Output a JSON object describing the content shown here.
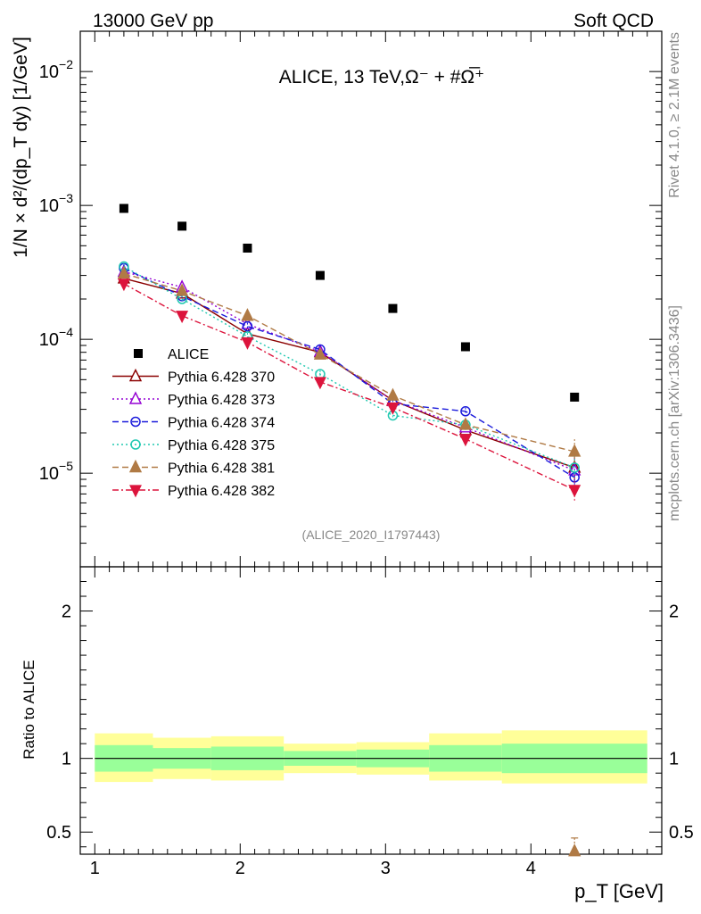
{
  "header": {
    "left": "13000 GeV pp",
    "right": "Soft QCD"
  },
  "side_labels": {
    "rivet": "Rivet 4.1.0, ≥ 2.1M events",
    "mcplots": "mcplots.cern.ch [arXiv:1306.3436]"
  },
  "chart_data": {
    "type": "scatter",
    "title": "ALICE, 13 TeV,Ω⁻ + #Ω̅⁺",
    "analysis_id": "(ALICE_2020_I1797443)",
    "xlabel": "p_T [GeV]",
    "ylabel": "1/N × d²/(dp_T dy) [1/GeV]",
    "ratio_ylabel": "Ratio to ALICE",
    "xlim": [
      0.9,
      4.9
    ],
    "ylim": [
      2e-06,
      0.02
    ],
    "yscale": "log",
    "ratio_ylim": [
      0.35,
      2.3
    ],
    "x_ticks": [
      1,
      2,
      3,
      4
    ],
    "y_ticks": [
      {
        "value": 1e-05,
        "base": "10",
        "exp": "−5"
      },
      {
        "value": 0.0001,
        "base": "10",
        "exp": "−4"
      },
      {
        "value": 0.001,
        "base": "10",
        "exp": "−3"
      },
      {
        "value": 0.01,
        "base": "10",
        "exp": "−2"
      }
    ],
    "ratio_ticks": [
      {
        "value": 0.5,
        "label": "0.5"
      },
      {
        "value": 1,
        "label": "1"
      },
      {
        "value": 2,
        "label": "2"
      }
    ],
    "x": [
      1.2,
      1.6,
      2.05,
      2.55,
      3.05,
      3.55,
      4.3
    ],
    "bins": [
      [
        1.0,
        1.4
      ],
      [
        1.4,
        1.8
      ],
      [
        1.8,
        2.3
      ],
      [
        2.3,
        2.8
      ],
      [
        2.8,
        3.3
      ],
      [
        3.3,
        3.8
      ],
      [
        3.8,
        4.8
      ]
    ],
    "reference": {
      "name": "ALICE",
      "values": [
        0.00095,
        0.0007,
        0.00048,
        0.0003,
        0.00017,
        8.8e-05,
        3.7e-05
      ],
      "ratio_band_inner": [
        [
          0.91,
          1.09
        ],
        [
          0.93,
          1.07
        ],
        [
          0.92,
          1.08
        ],
        [
          0.95,
          1.05
        ],
        [
          0.94,
          1.06
        ],
        [
          0.91,
          1.09
        ],
        [
          0.9,
          1.1
        ]
      ],
      "ratio_band_outer": [
        [
          0.84,
          1.17
        ],
        [
          0.86,
          1.14
        ],
        [
          0.85,
          1.15
        ],
        [
          0.9,
          1.1
        ],
        [
          0.89,
          1.11
        ],
        [
          0.85,
          1.17
        ],
        [
          0.83,
          1.19
        ]
      ]
    },
    "series": [
      {
        "name": "Pythia 6.428 370",
        "color": "#8b0000",
        "dash": "",
        "marker": "triangle-open",
        "values": [
          0.000285,
          0.00022,
          0.00011,
          8e-05,
          3.5e-05,
          2.1e-05,
          1.1e-05
        ]
      },
      {
        "name": "Pythia 6.428 373",
        "color": "#9400d3",
        "dash": "2,3",
        "marker": "triangle-open",
        "values": [
          0.00032,
          0.000245,
          0.00013,
          8.1e-05,
          3.5e-05,
          2.2e-05,
          1.05e-05
        ]
      },
      {
        "name": "Pythia 6.428 374",
        "color": "#1a1adb",
        "dash": "7,4",
        "marker": "circle-open",
        "values": [
          0.00034,
          0.00021,
          0.000125,
          8.4e-05,
          3.3e-05,
          2.9e-05,
          9.3e-06
        ]
      },
      {
        "name": "Pythia 6.428 375",
        "color": "#20c8b0",
        "dash": "2,3",
        "marker": "circle-open",
        "values": [
          0.00035,
          0.0002,
          0.000105,
          5.5e-05,
          2.7e-05,
          2.3e-05,
          1.1e-05
        ]
      },
      {
        "name": "Pythia 6.428 381",
        "color": "#b07a45",
        "dash": "7,4",
        "marker": "triangle-filled",
        "values": [
          0.00031,
          0.00023,
          0.00015,
          7.7e-05,
          3.8e-05,
          2.3e-05,
          1.45e-05
        ]
      },
      {
        "name": "Pythia 6.428 382",
        "color": "#dc143c",
        "dash": "7,3,2,3",
        "marker": "triangle-down-filled",
        "values": [
          0.00026,
          0.00015,
          9.5e-05,
          4.8e-05,
          3.1e-05,
          1.8e-05,
          7.5e-06
        ]
      }
    ],
    "ratio_outlier": {
      "series": "Pythia 6.428 381",
      "x": 4.3,
      "value": 0.37
    }
  }
}
